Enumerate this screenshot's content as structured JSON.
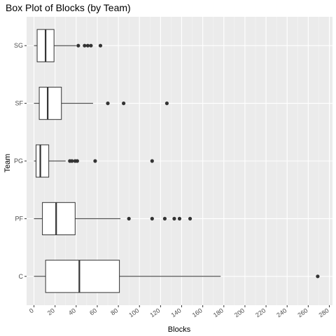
{
  "chart_data": {
    "type": "boxplot",
    "orientation": "horizontal",
    "title": "Box Plot of Blocks (by Team)",
    "xlabel": "Blocks",
    "ylabel": "Team",
    "xlim": [
      -7,
      283
    ],
    "x_ticks": [
      0,
      20,
      40,
      60,
      80,
      100,
      120,
      140,
      160,
      180,
      200,
      220,
      240,
      260,
      280
    ],
    "categories": [
      "C",
      "PF",
      "PG",
      "SF",
      "SG"
    ],
    "boxes": [
      {
        "team": "C",
        "whisker_low": 0,
        "q1": 11,
        "median": 43,
        "q3": 81,
        "whisker_high": 177,
        "outliers": [
          269
        ]
      },
      {
        "team": "PF",
        "whisker_low": 0,
        "q1": 8,
        "median": 21,
        "q3": 39,
        "whisker_high": 82,
        "outliers": [
          90,
          112,
          124,
          133,
          138,
          148
        ]
      },
      {
        "team": "PG",
        "whisker_low": 0,
        "q1": 2,
        "median": 6,
        "q3": 14,
        "whisker_high": 30,
        "outliers": [
          34,
          36,
          39,
          41,
          58,
          112
        ]
      },
      {
        "team": "SF",
        "whisker_low": 0,
        "q1": 5,
        "median": 13,
        "q3": 26,
        "whisker_high": 56,
        "outliers": [
          70,
          85,
          126
        ]
      },
      {
        "team": "SG",
        "whisker_low": 0,
        "q1": 3,
        "median": 11,
        "q3": 19,
        "whisker_high": 40,
        "outliers": [
          42,
          48,
          51,
          54,
          63
        ]
      }
    ],
    "grid": true,
    "legend": "none",
    "colors": {
      "panel_background": "#ebebeb",
      "grid_major": "#ffffff",
      "grid_minor": "#f5f5f5",
      "box_fill": "#ffffff",
      "box_stroke": "#333333",
      "outlier": "#333333",
      "tick_label": "#4d4d4d"
    }
  }
}
